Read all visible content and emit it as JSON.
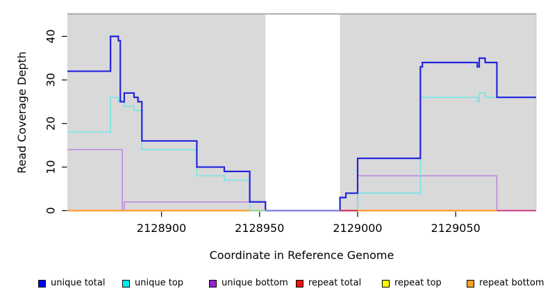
{
  "chart_data": {
    "type": "line",
    "step": true,
    "title": "",
    "xlabel": "Coordinate in Reference Genome",
    "ylabel": "Read Coverage Depth",
    "xlim": [
      2128852,
      2129091
    ],
    "ylim": [
      0,
      45
    ],
    "x_ticks": [
      "2128900",
      "2128950",
      "2129000",
      "2129050"
    ],
    "x_tick_values": [
      2128900,
      2128950,
      2129000,
      2129050
    ],
    "y_ticks": [
      "0",
      "10",
      "20",
      "30",
      "40"
    ],
    "y_tick_values": [
      0,
      10,
      20,
      30,
      40
    ],
    "grid": "off",
    "panel_background": "#d9d9d9",
    "panel_top_border_color": "#9b9b9b",
    "gap_region": {
      "start": 2128953,
      "end": 2128991,
      "color": "#ffffff"
    },
    "series": [
      {
        "name": "unique total",
        "color": "#2222dd",
        "width": 2.2,
        "points": [
          [
            2128852,
            32
          ],
          [
            2128874,
            40
          ],
          [
            2128878,
            39
          ],
          [
            2128879,
            25
          ],
          [
            2128881,
            27
          ],
          [
            2128886,
            26
          ],
          [
            2128888,
            25
          ],
          [
            2128890,
            16
          ],
          [
            2128918,
            10
          ],
          [
            2128932,
            9
          ],
          [
            2128945,
            2
          ],
          [
            2128953,
            0
          ],
          [
            2128991,
            3
          ],
          [
            2128994,
            4
          ],
          [
            2129000,
            12
          ],
          [
            2129032,
            33
          ],
          [
            2129033,
            34
          ],
          [
            2129061,
            33
          ],
          [
            2129062,
            35
          ],
          [
            2129065,
            34
          ],
          [
            2129071,
            26
          ],
          [
            2129091,
            26
          ]
        ]
      },
      {
        "name": "unique top",
        "color": "#73e6e6",
        "width": 1.6,
        "points": [
          [
            2128852,
            18
          ],
          [
            2128874,
            26
          ],
          [
            2128878,
            25
          ],
          [
            2128881,
            24
          ],
          [
            2128886,
            23
          ],
          [
            2128890,
            14
          ],
          [
            2128918,
            8
          ],
          [
            2128932,
            7
          ],
          [
            2128945,
            0
          ],
          [
            2129000,
            4
          ],
          [
            2129032,
            26
          ],
          [
            2129061,
            25
          ],
          [
            2129062,
            27
          ],
          [
            2129065,
            26
          ],
          [
            2129091,
            26
          ]
        ]
      },
      {
        "name": "unique bottom",
        "color": "#bd80dd",
        "width": 1.5,
        "points": [
          [
            2128852,
            14
          ],
          [
            2128880,
            0
          ],
          [
            2128881,
            2
          ],
          [
            2128953,
            0
          ],
          [
            2129000,
            8
          ],
          [
            2129071,
            0
          ],
          [
            2129091,
            0
          ]
        ]
      },
      {
        "name": "repeat total",
        "color": "#ee1111",
        "width": 1.5,
        "points": [
          [
            2128852,
            0
          ],
          [
            2129091,
            0
          ]
        ]
      },
      {
        "name": "repeat top",
        "color": "#ffff00",
        "width": 1.5,
        "points": [
          [
            2128852,
            0
          ],
          [
            2129091,
            0
          ]
        ]
      },
      {
        "name": "repeat bottom",
        "color": "#ff9d2c",
        "width": 2,
        "points": [
          [
            2128852,
            0
          ],
          [
            2129091,
            0
          ]
        ]
      }
    ],
    "zero_line_segments": [
      {
        "from": 2128852,
        "to": 2128945,
        "color": "#ff9d2c"
      },
      {
        "from": 2128945,
        "to": 2128953,
        "color": "#96dd9c"
      },
      {
        "from": 2128953,
        "to": 2128991,
        "color": "#8b8bf0"
      },
      {
        "from": 2128991,
        "to": 2129000,
        "color": "#cc3057"
      },
      {
        "from": 2129000,
        "to": 2129071,
        "color": "#ff9d2c"
      },
      {
        "from": 2129071,
        "to": 2129091,
        "color": "#d0499a"
      }
    ],
    "legend_position": "bottom"
  },
  "legend": {
    "items": [
      {
        "label": "unique total",
        "color": "#0000ee"
      },
      {
        "label": "unique top",
        "color": "#00eeee"
      },
      {
        "label": "unique bottom",
        "color": "#9a22d0"
      },
      {
        "label": "repeat total",
        "color": "#ee1111"
      },
      {
        "label": "repeat top",
        "color": "#ffff00"
      },
      {
        "label": "repeat bottom",
        "color": "#ffa022"
      }
    ]
  },
  "axes": {
    "x_label": "Coordinate in Reference Genome",
    "y_label": "Read Coverage Depth"
  }
}
